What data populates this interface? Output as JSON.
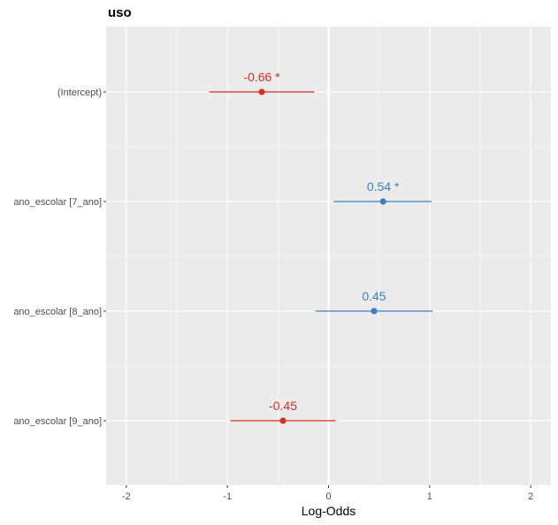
{
  "chart_data": {
    "type": "forest",
    "title": "uso",
    "xlabel": "Log-Odds",
    "ylabel": "",
    "xlim": [
      -2.2,
      2.2
    ],
    "x_ticks": [
      -2,
      -1,
      0,
      1,
      2
    ],
    "x_tick_labels": [
      "-2",
      "-1",
      "0",
      "1",
      "2"
    ],
    "grid": true,
    "reference_line": 0,
    "colors": {
      "negative": "#d7301f",
      "positive": "#3f7fbf",
      "panel": "#ebebeb",
      "grid": "#ffffff"
    },
    "terms": [
      {
        "label": "(Intercept)",
        "estimate": -0.66,
        "ci_low": -1.18,
        "ci_high": -0.14,
        "annotation": "-0.66 *",
        "sign": "negative"
      },
      {
        "label": "ano_escolar [7_ano]",
        "estimate": 0.54,
        "ci_low": 0.05,
        "ci_high": 1.02,
        "annotation": "0.54 *",
        "sign": "positive"
      },
      {
        "label": "ano_escolar [8_ano]",
        "estimate": 0.45,
        "ci_low": -0.13,
        "ci_high": 1.03,
        "annotation": "0.45",
        "sign": "positive"
      },
      {
        "label": "ano_escolar [9_ano]",
        "estimate": -0.45,
        "ci_low": -0.97,
        "ci_high": 0.07,
        "annotation": "-0.45",
        "sign": "negative"
      }
    ]
  }
}
